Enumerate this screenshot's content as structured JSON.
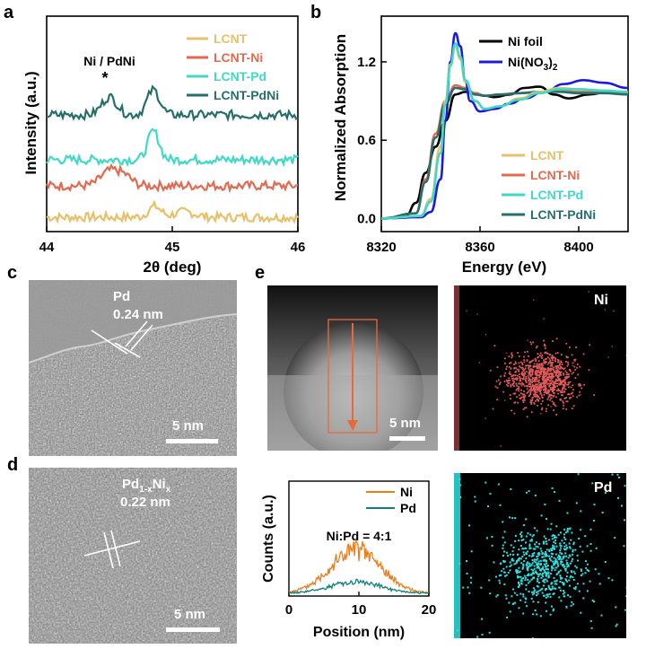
{
  "panel_labels": {
    "a": "a",
    "b": "b",
    "c": "c",
    "d": "d",
    "e": "e"
  },
  "colors": {
    "LCNT": "#e8c06a",
    "LCNT-Ni": "#e4694e",
    "LCNT-Pd": "#3fd9c6",
    "LCNT-PdNi": "#246f6a",
    "Ni foil": "#000000",
    "Ni(NO3)2": "#1b1be0",
    "line_Ni": "#ee7d1c",
    "line_Pd": "#117f7a",
    "map_Ni": "#e05a5a",
    "map_Pd": "#2fe0e0"
  },
  "chart_data": [
    {
      "type": "line",
      "panel": "a",
      "xlabel": "2θ (deg)",
      "ylabel": "Intensity (a.u.)",
      "xlim": [
        44,
        46
      ],
      "xticks": [
        44,
        45,
        46
      ],
      "annotation": {
        "text": "Ni / PdNi",
        "marker": "*"
      },
      "legend_position": "top-right",
      "series": [
        {
          "name": "LCNT",
          "description": "flat noisy baseline with peak near 44.85"
        },
        {
          "name": "LCNT-Ni",
          "description": "broad peak near 44.5"
        },
        {
          "name": "LCNT-Pd",
          "description": "sharp peak near 44.85"
        },
        {
          "name": "LCNT-PdNi",
          "description": "peaks near 44.5 and 44.85"
        }
      ]
    },
    {
      "type": "line",
      "panel": "b",
      "xlabel": "Energy (eV)",
      "ylabel": "Normalized Absorption",
      "xlim": [
        8320,
        8420
      ],
      "ylim": [
        -0.1,
        1.55
      ],
      "xticks": [
        8320,
        8360,
        8400
      ],
      "yticks": [
        0.0,
        0.6,
        1.2
      ],
      "legend_position": "top-right and bottom-right",
      "series": [
        {
          "name": "Ni foil",
          "x": [
            8320,
            8330,
            8334,
            8338,
            8342,
            8346,
            8350,
            8354,
            8358,
            8362,
            8366,
            8372,
            8378,
            8384,
            8390,
            8396,
            8404,
            8412,
            8420
          ],
          "y": [
            0.0,
            0.02,
            0.12,
            0.35,
            0.55,
            0.75,
            0.95,
            0.97,
            0.96,
            0.94,
            0.93,
            0.95,
            1.0,
            1.01,
            0.95,
            0.92,
            0.95,
            0.97,
            0.96
          ]
        },
        {
          "name": "Ni(NO3)2",
          "x": [
            8320,
            8336,
            8340,
            8344,
            8346,
            8348,
            8350,
            8352,
            8354,
            8356,
            8360,
            8366,
            8372,
            8378,
            8386,
            8394,
            8402,
            8410,
            8420
          ],
          "y": [
            0.0,
            0.01,
            0.05,
            0.3,
            0.75,
            1.2,
            1.42,
            1.32,
            1.05,
            0.9,
            0.82,
            0.84,
            0.88,
            0.92,
            0.97,
            1.03,
            1.06,
            1.04,
            1.0
          ]
        },
        {
          "name": "LCNT",
          "x": [
            8320,
            8336,
            8340,
            8344,
            8346,
            8348,
            8350,
            8352,
            8354,
            8358,
            8362,
            8368,
            8376,
            8384,
            8392,
            8400,
            8410,
            8420
          ],
          "y": [
            0.0,
            0.02,
            0.15,
            0.55,
            0.9,
            1.18,
            1.32,
            1.22,
            1.05,
            0.9,
            0.84,
            0.86,
            0.92,
            0.97,
            1.0,
            0.99,
            0.98,
            0.97
          ]
        },
        {
          "name": "LCNT-Ni",
          "x": [
            8320,
            8334,
            8338,
            8342,
            8346,
            8350,
            8354,
            8358,
            8362,
            8368,
            8376,
            8384,
            8392,
            8400,
            8410,
            8420
          ],
          "y": [
            0.0,
            0.04,
            0.3,
            0.65,
            0.9,
            1.02,
            1.0,
            0.96,
            0.94,
            0.95,
            0.96,
            0.97,
            0.98,
            0.97,
            0.97,
            0.96
          ]
        },
        {
          "name": "LCNT-Pd",
          "x": [
            8320,
            8336,
            8340,
            8344,
            8346,
            8348,
            8350,
            8352,
            8354,
            8358,
            8362,
            8368,
            8376,
            8384,
            8392,
            8400,
            8410,
            8420
          ],
          "y": [
            0.0,
            0.02,
            0.13,
            0.5,
            0.88,
            1.17,
            1.34,
            1.24,
            1.06,
            0.9,
            0.84,
            0.86,
            0.91,
            0.96,
            0.99,
            0.99,
            0.98,
            0.97
          ]
        },
        {
          "name": "LCNT-PdNi",
          "x": [
            8320,
            8334,
            8338,
            8342,
            8346,
            8350,
            8354,
            8358,
            8362,
            8368,
            8376,
            8384,
            8392,
            8400,
            8410,
            8420
          ],
          "y": [
            0.0,
            0.04,
            0.28,
            0.62,
            0.88,
            1.0,
            0.99,
            0.95,
            0.94,
            0.95,
            0.96,
            0.97,
            0.97,
            0.96,
            0.96,
            0.95
          ]
        }
      ]
    },
    {
      "type": "line",
      "panel": "e",
      "xlabel": "Position (nm)",
      "ylabel": "Counts (a.u.)",
      "xlim": [
        0,
        20
      ],
      "xticks": [
        0,
        10,
        20
      ],
      "annotation": "Ni:Pd = 4:1",
      "legend_position": "top-right",
      "series": [
        {
          "name": "Ni",
          "description": "broad hump peaking ~10 nm"
        },
        {
          "name": "Pd",
          "description": "low hump peaking ~10 nm"
        }
      ]
    }
  ],
  "legend_a": [
    "LCNT",
    "LCNT-Ni",
    "LCNT-Pd",
    "LCNT-PdNi"
  ],
  "legend_b_top": [
    "Ni foil",
    "Ni(NO3)2"
  ],
  "legend_b_bottom": [
    "LCNT",
    "LCNT-Ni",
    "LCNT-Pd",
    "LCNT-PdNi"
  ],
  "legend_e": [
    "Ni",
    "Pd"
  ],
  "panel_c": {
    "element": "Pd",
    "spacing": "0.24 nm",
    "scale": "5 nm"
  },
  "panel_d": {
    "element": "Pd1-xNix",
    "spacing": "0.22 nm",
    "scale": "5 nm"
  },
  "panel_e": {
    "scale": "5 nm",
    "map_ni": "Ni",
    "map_pd": "Pd"
  }
}
